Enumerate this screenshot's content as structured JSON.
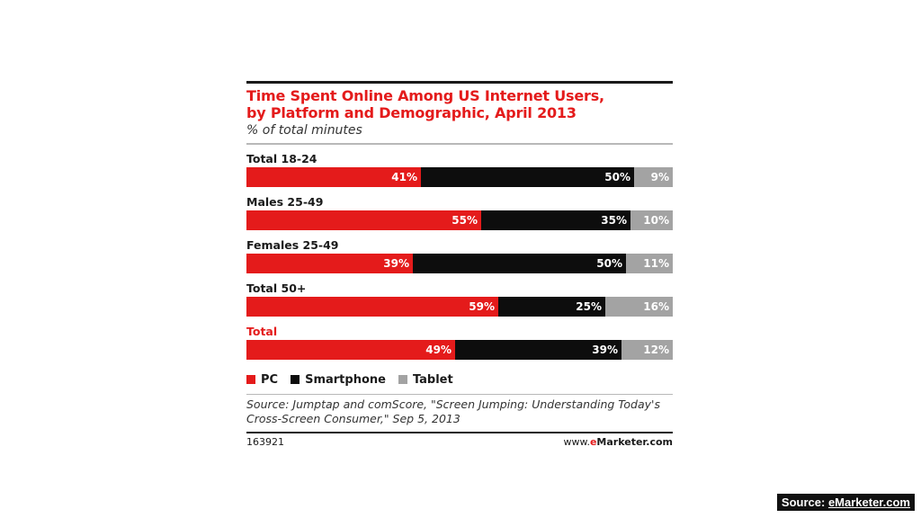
{
  "chart_data": {
    "type": "bar",
    "stacked": true,
    "orientation": "horizontal",
    "title_line1": "Time Spent Online Among US Internet Users,",
    "title_line2": "by Platform and Demographic, April 2013",
    "subtitle": "% of total minutes",
    "categories": [
      "Total 18-24",
      "Males 25-49",
      "Females 25-49",
      "Total 50+",
      "Total"
    ],
    "series": [
      {
        "name": "PC",
        "color": "#e41b1b",
        "values": [
          41,
          55,
          39,
          59,
          49
        ]
      },
      {
        "name": "Smartphone",
        "color": "#0d0d0d",
        "values": [
          50,
          35,
          50,
          25,
          39
        ]
      },
      {
        "name": "Tablet",
        "color": "#a3a3a3",
        "values": [
          9,
          10,
          11,
          16,
          12
        ]
      }
    ],
    "value_suffix": "%",
    "legend_position": "bottom-left",
    "source_line1": "Source: Jumptap and comScore, \"Screen Jumping: Understanding Today's",
    "source_line2": "Cross-Screen Consumer,\" Sep 5, 2013",
    "chart_id": "163921",
    "brand_prefix": "www.",
    "brand_e": "e",
    "brand_rest": "Marketer.com"
  },
  "badge": {
    "prefix": "Source: ",
    "link": "eMarketer.com"
  }
}
